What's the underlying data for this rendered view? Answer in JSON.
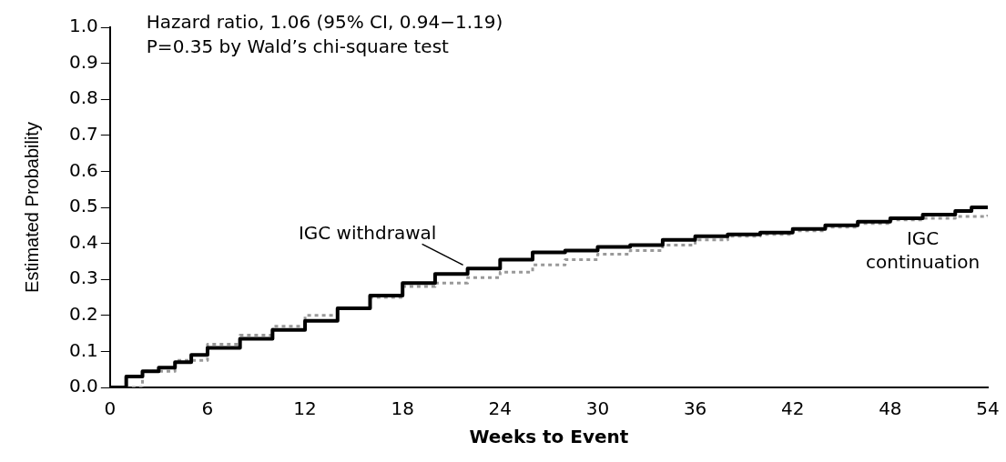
{
  "chart_data": {
    "type": "step",
    "xlabel": "Weeks to Event",
    "ylabel": "Estimated Probability",
    "annotations": [
      "Hazard ratio, 1.06 (95% CI, 0.94−1.19)",
      "P=0.35 by Wald’s chi-square test"
    ],
    "xlim": [
      0,
      54
    ],
    "xticks": [
      0,
      6,
      12,
      18,
      24,
      30,
      36,
      42,
      48,
      54
    ],
    "ylim": [
      0,
      1
    ],
    "yticks": [
      {
        "value": 0,
        "label": "0.0"
      },
      {
        "value": 0.1,
        "label": "0.1"
      },
      {
        "value": 0.2,
        "label": "0.2"
      },
      {
        "value": 0.3,
        "label": "0.3"
      },
      {
        "value": 0.4,
        "label": "0.4"
      },
      {
        "value": 0.5,
        "label": "0.5"
      },
      {
        "value": 0.6,
        "label": "0.6"
      },
      {
        "value": 0.7,
        "label": "0.7"
      },
      {
        "value": 0.8,
        "label": "0.8"
      },
      {
        "value": 0.9,
        "label": "0.9"
      },
      {
        "value": 1,
        "label": "1.0"
      }
    ],
    "grid": false,
    "legend": false,
    "series": [
      {
        "name": "IGC withdrawal",
        "color": "#000000",
        "line_style": "solid",
        "x": [
          0,
          1,
          2,
          3,
          4,
          5,
          6,
          8,
          10,
          12,
          14,
          16,
          18,
          20,
          22,
          24,
          26,
          28,
          30,
          32,
          34,
          36,
          38,
          40,
          42,
          44,
          46,
          48,
          50,
          52,
          53,
          54
        ],
        "values": [
          0,
          0.03,
          0.045,
          0.055,
          0.07,
          0.09,
          0.11,
          0.135,
          0.16,
          0.185,
          0.22,
          0.255,
          0.29,
          0.315,
          0.33,
          0.355,
          0.375,
          0.38,
          0.39,
          0.395,
          0.41,
          0.42,
          0.425,
          0.43,
          0.44,
          0.45,
          0.46,
          0.47,
          0.48,
          0.49,
          0.5,
          0.5
        ]
      },
      {
        "name": "IGC continuation",
        "color": "#999999",
        "line_style": "dotted",
        "x": [
          0,
          2,
          4,
          6,
          8,
          10,
          12,
          14,
          16,
          18,
          20,
          22,
          24,
          26,
          28,
          30,
          32,
          34,
          36,
          38,
          40,
          42,
          44,
          46,
          48,
          50,
          52,
          54
        ],
        "values": [
          0,
          0.045,
          0.075,
          0.12,
          0.145,
          0.17,
          0.2,
          0.22,
          0.25,
          0.28,
          0.29,
          0.305,
          0.32,
          0.34,
          0.355,
          0.37,
          0.38,
          0.395,
          0.41,
          0.42,
          0.425,
          0.435,
          0.445,
          0.455,
          0.465,
          0.47,
          0.475,
          0.48
        ]
      }
    ]
  }
}
